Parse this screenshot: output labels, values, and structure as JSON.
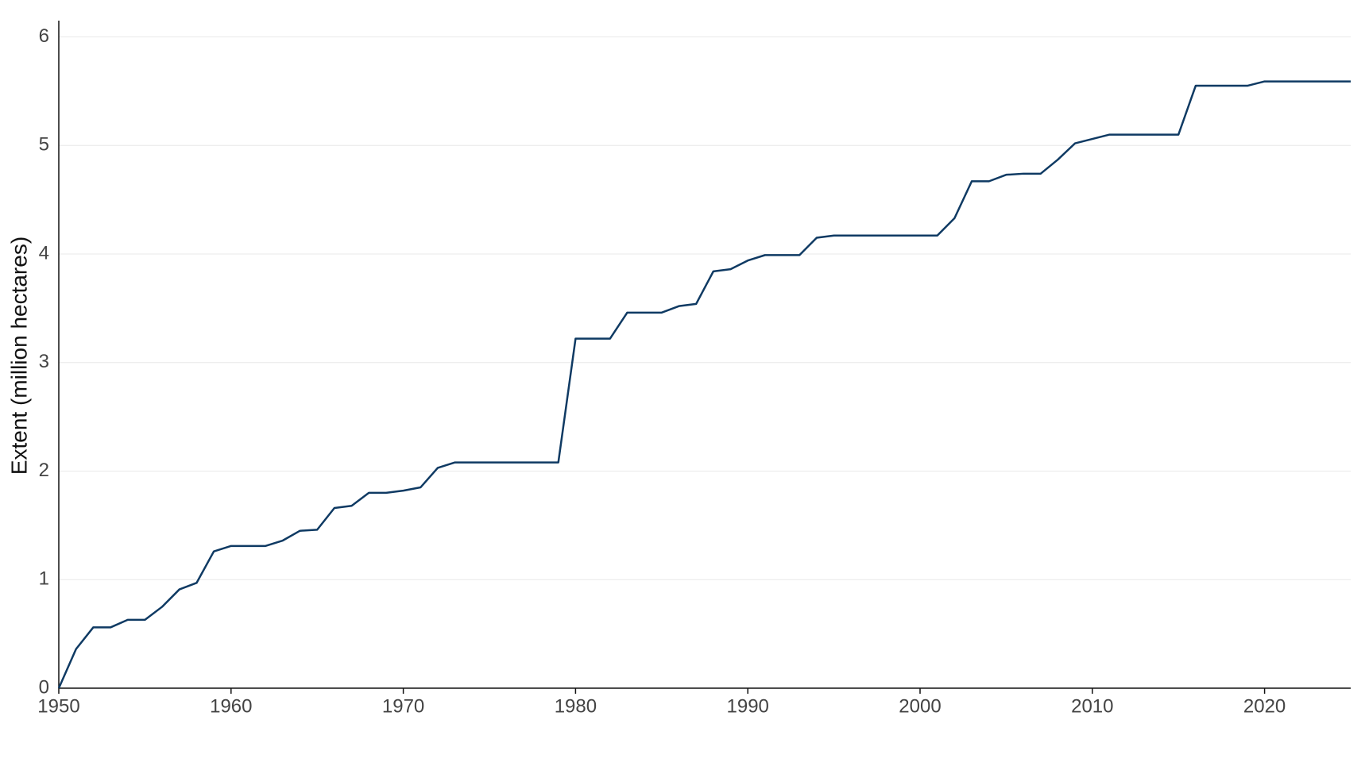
{
  "chart_data": {
    "type": "line",
    "y_label": "Extent (million hectares)",
    "x": [
      1950,
      1951,
      1952,
      1953,
      1954,
      1955,
      1956,
      1957,
      1958,
      1959,
      1960,
      1961,
      1962,
      1963,
      1964,
      1965,
      1966,
      1967,
      1968,
      1969,
      1970,
      1971,
      1972,
      1973,
      1974,
      1975,
      1976,
      1977,
      1978,
      1979,
      1980,
      1981,
      1982,
      1983,
      1984,
      1985,
      1986,
      1987,
      1988,
      1989,
      1990,
      1991,
      1992,
      1993,
      1994,
      1995,
      1996,
      1997,
      1998,
      1999,
      2000,
      2001,
      2002,
      2003,
      2004,
      2005,
      2006,
      2007,
      2008,
      2009,
      2010,
      2011,
      2012,
      2013,
      2014,
      2015,
      2016,
      2017,
      2018,
      2019,
      2020,
      2021,
      2022,
      2023,
      2024,
      2025
    ],
    "series": [
      {
        "color": "#0f3a63",
        "values": [
          0,
          0.36,
          0.56,
          0.56,
          0.63,
          0.63,
          0.75,
          0.91,
          0.97,
          1.26,
          1.31,
          1.31,
          1.31,
          1.36,
          1.45,
          1.46,
          1.66,
          1.68,
          1.8,
          1.8,
          1.82,
          1.85,
          2.03,
          2.08,
          2.08,
          2.08,
          2.08,
          2.08,
          2.08,
          2.08,
          3.22,
          3.22,
          3.22,
          3.46,
          3.46,
          3.46,
          3.52,
          3.54,
          3.84,
          3.86,
          3.94,
          3.99,
          3.99,
          3.99,
          4.15,
          4.17,
          4.17,
          4.17,
          4.17,
          4.17,
          4.17,
          4.17,
          4.33,
          4.67,
          4.67,
          4.73,
          4.74,
          4.74,
          4.87,
          5.02,
          5.06,
          5.1,
          5.1,
          5.1,
          5.1,
          5.1,
          5.55,
          5.55,
          5.55,
          5.55,
          5.59,
          5.59,
          5.59,
          5.59,
          5.59,
          5.59
        ]
      }
    ],
    "xlim": [
      1950,
      2025
    ],
    "xticks": [
      1950,
      1960,
      1970,
      1980,
      1990,
      2000,
      2010,
      2020
    ],
    "ylim": [
      0,
      6.15
    ],
    "yticks": [
      0,
      1,
      2,
      3,
      4,
      5,
      6
    ],
    "grid": true
  }
}
